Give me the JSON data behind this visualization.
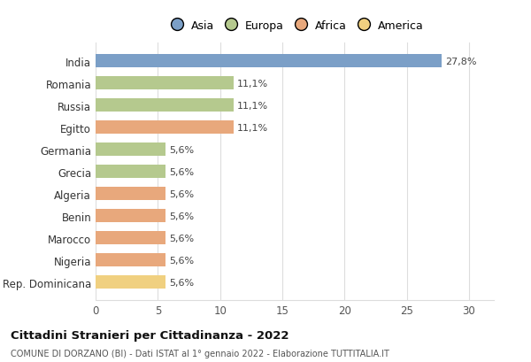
{
  "countries": [
    "India",
    "Romania",
    "Russia",
    "Egitto",
    "Germania",
    "Grecia",
    "Algeria",
    "Benin",
    "Marocco",
    "Nigeria",
    "Rep. Dominicana"
  ],
  "values": [
    27.8,
    11.1,
    11.1,
    11.1,
    5.6,
    5.6,
    5.6,
    5.6,
    5.6,
    5.6,
    5.6
  ],
  "labels": [
    "27,8%",
    "11,1%",
    "11,1%",
    "11,1%",
    "5,6%",
    "5,6%",
    "5,6%",
    "5,6%",
    "5,6%",
    "5,6%",
    "5,6%"
  ],
  "colors": [
    "#7b9fc7",
    "#b5c98e",
    "#b5c98e",
    "#e8a87c",
    "#b5c98e",
    "#b5c98e",
    "#e8a87c",
    "#e8a87c",
    "#e8a87c",
    "#e8a87c",
    "#f0d080"
  ],
  "legend": [
    {
      "label": "Asia",
      "color": "#7b9fc7"
    },
    {
      "label": "Europa",
      "color": "#b5c98e"
    },
    {
      "label": "Africa",
      "color": "#e8a87c"
    },
    {
      "label": "America",
      "color": "#f0d080"
    }
  ],
  "xlim": [
    0,
    32
  ],
  "xticks": [
    0,
    5,
    10,
    15,
    20,
    25,
    30
  ],
  "title": "Cittadini Stranieri per Cittadinanza - 2022",
  "subtitle": "COMUNE DI DORZANO (BI) - Dati ISTAT al 1° gennaio 2022 - Elaborazione TUTTITALIA.IT",
  "bg_color": "#ffffff",
  "bar_height": 0.6,
  "grid_color": "#dddddd"
}
